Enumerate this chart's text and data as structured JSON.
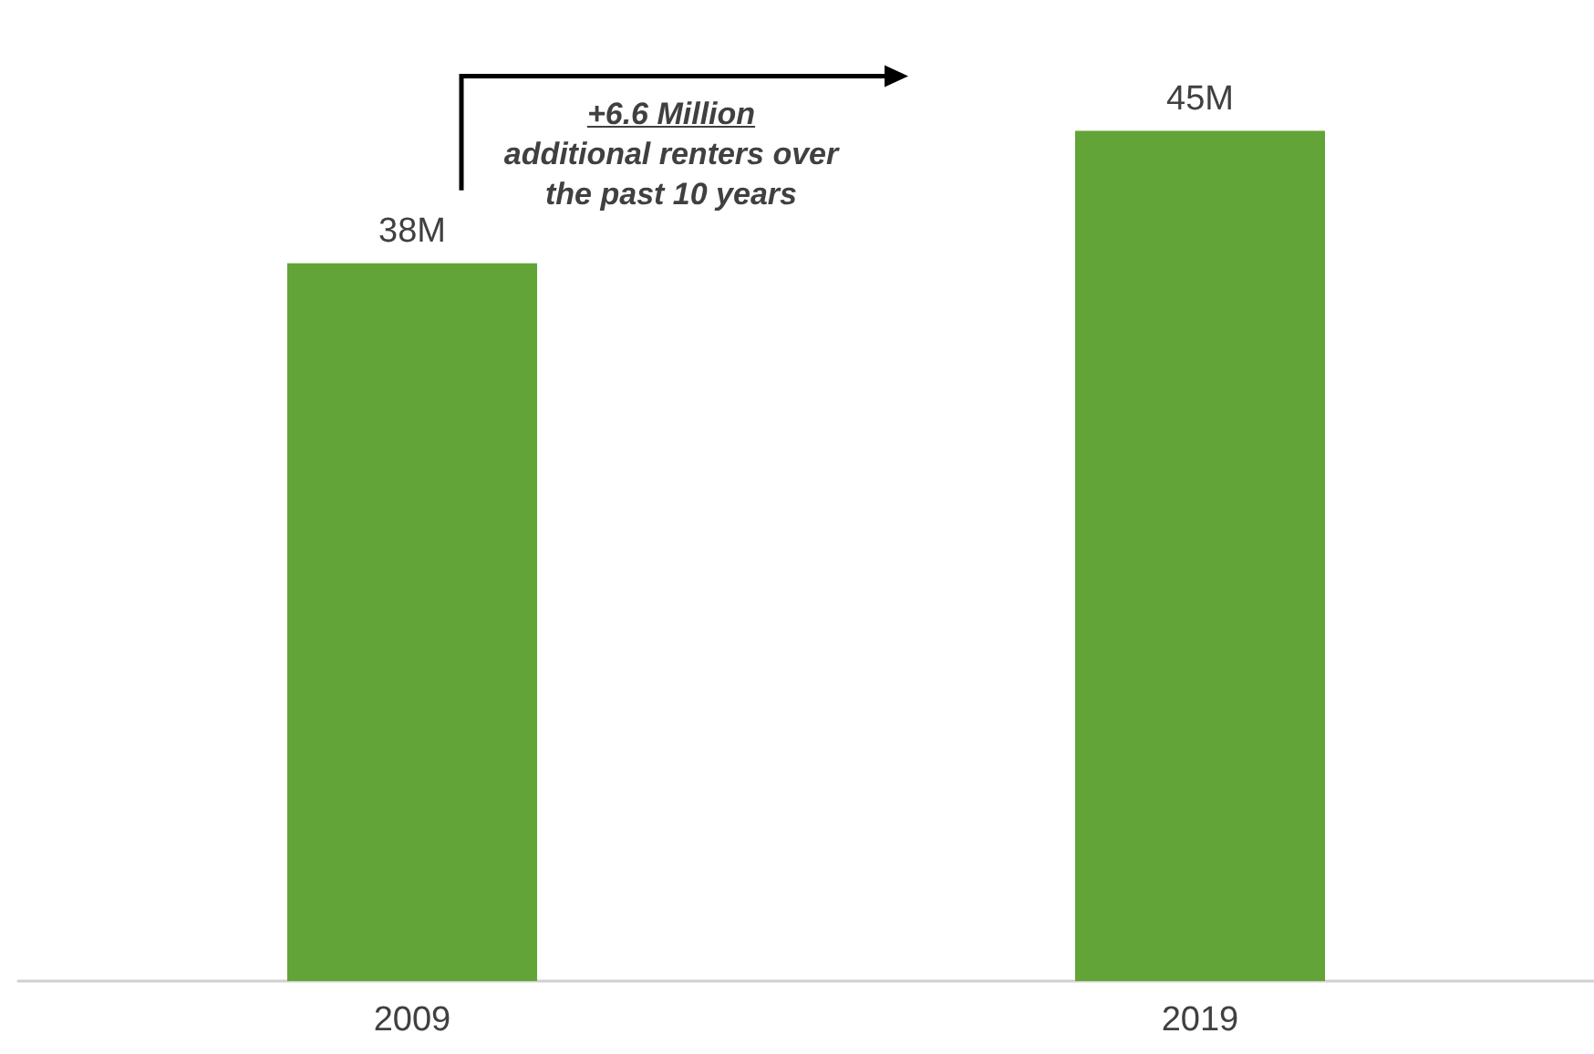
{
  "chart_data": {
    "type": "bar",
    "categories": [
      "2009",
      "2019"
    ],
    "values": [
      38,
      45
    ],
    "value_labels": [
      "38M",
      "45M"
    ],
    "color": "#62a437",
    "annotations": [
      "+6.6 Million",
      "additional renters over the past 10 years"
    ],
    "grid": false
  }
}
